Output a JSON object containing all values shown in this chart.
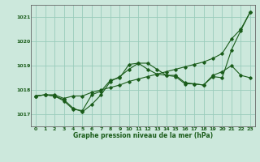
{
  "background_color": "#cce8dc",
  "grid_color": "#99ccbb",
  "line_color": "#1a5c1a",
  "title": "Graphe pression niveau de la mer (hPa)",
  "xlim": [
    -0.5,
    23.5
  ],
  "ylim": [
    1016.5,
    1021.5
  ],
  "yticks": [
    1017,
    1018,
    1019,
    1020,
    1021
  ],
  "xticks": [
    0,
    1,
    2,
    3,
    4,
    5,
    6,
    7,
    8,
    9,
    10,
    11,
    12,
    13,
    14,
    15,
    16,
    17,
    18,
    19,
    20,
    21,
    22,
    23
  ],
  "line1_x": [
    0,
    1,
    2,
    3,
    4,
    5,
    6,
    7,
    8,
    9,
    10,
    11,
    12,
    13,
    14,
    15,
    16,
    17,
    18,
    19,
    20,
    21,
    22,
    23
  ],
  "line1_y": [
    1017.75,
    1017.8,
    1017.8,
    1017.65,
    1017.75,
    1017.75,
    1017.9,
    1018.0,
    1018.1,
    1018.2,
    1018.35,
    1018.45,
    1018.55,
    1018.65,
    1018.75,
    1018.85,
    1018.95,
    1019.05,
    1019.15,
    1019.3,
    1019.5,
    1020.1,
    1020.5,
    1021.2
  ],
  "line2_x": [
    0,
    1,
    2,
    3,
    4,
    5,
    6,
    7,
    8,
    9,
    10,
    11,
    12,
    13,
    14,
    15,
    16,
    17,
    18,
    19,
    20,
    21,
    22,
    23
  ],
  "line2_y": [
    1017.75,
    1017.8,
    1017.75,
    1017.55,
    1017.2,
    1017.15,
    1017.8,
    1017.95,
    1018.4,
    1018.5,
    1019.05,
    1019.1,
    1018.85,
    1018.65,
    1018.6,
    1018.6,
    1018.3,
    1018.25,
    1018.2,
    1018.6,
    1018.75,
    1019.0,
    1018.6,
    1018.5
  ],
  "line3_x": [
    0,
    1,
    2,
    3,
    4,
    5,
    6,
    7,
    8,
    9,
    10,
    11,
    12,
    13,
    14,
    15,
    16,
    17,
    18,
    19,
    20,
    21,
    22,
    23
  ],
  "line3_y": [
    1017.75,
    1017.8,
    1017.75,
    1017.6,
    1017.25,
    1017.1,
    1017.4,
    1017.8,
    1018.35,
    1018.55,
    1018.85,
    1019.1,
    1019.1,
    1018.85,
    1018.6,
    1018.55,
    1018.25,
    1018.25,
    1018.2,
    1018.55,
    1018.5,
    1019.65,
    1020.45,
    1021.2
  ]
}
